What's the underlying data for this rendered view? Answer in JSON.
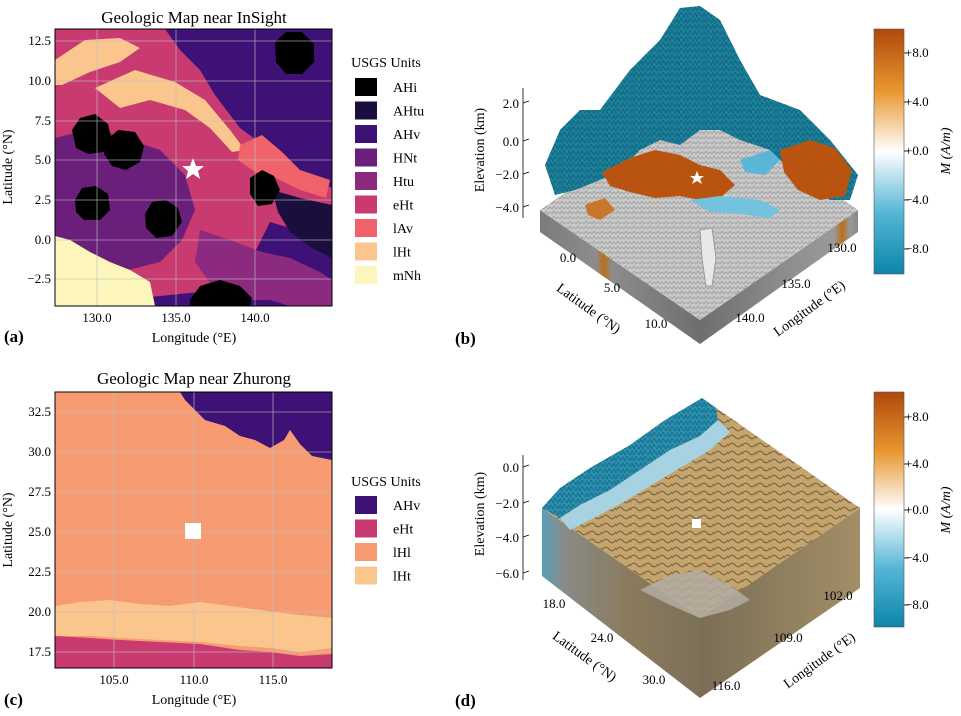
{
  "colors": {
    "AHi": "#000000",
    "AHtu": "#1a0f3c",
    "AHv": "#3d1175",
    "HNt": "#6a1f7a",
    "Htu": "#8c2a80",
    "eHt": "#c83a70",
    "lAv": "#f0636b",
    "lHt": "#fbc58e",
    "mNh": "#fdf6bc",
    "lHl": "#f79c72",
    "mag_pos": "#bf5410",
    "mag_neg": "#0f8fb5",
    "mag_mid": "#ffffff"
  },
  "panels": {
    "a": {
      "label": "(a)",
      "title": "Geologic Map near InSight",
      "xlabel": "Longitude (°E)",
      "ylabel": "Latitude (°N)",
      "xticks": [
        "130.0",
        "135.0",
        "140.0"
      ],
      "yticks": [
        "12.5",
        "10.0",
        "7.5",
        "5.0",
        "2.5",
        "0.0",
        "−2.5"
      ],
      "legend_title": "USGS Units",
      "legend": [
        "AHi",
        "AHtu",
        "AHv",
        "HNt",
        "Htu",
        "eHt",
        "lAv",
        "lHt",
        "mNh"
      ]
    },
    "b": {
      "label": "(b)",
      "zlabel": "Elevation (km)",
      "zticks": [
        "2.0",
        "0.0",
        "−2.0",
        "−4.0"
      ],
      "lat_label": "Latitude (°N)",
      "lat_ticks": [
        "0.0",
        "5.0",
        "10.0"
      ],
      "lon_label": "Longitude (°E)",
      "lon_ticks": [
        "130.0",
        "135.0",
        "140.0"
      ],
      "cbar_label": "M (A/m)",
      "cbar_ticks": [
        "+8.0",
        "+4.0",
        "+0.0",
        "−4.0",
        "−8.0"
      ]
    },
    "c": {
      "label": "(c)",
      "title": "Geologic Map near Zhurong",
      "xlabel": "Longitude (°E)",
      "ylabel": "Latitude (°N)",
      "xticks": [
        "105.0",
        "110.0",
        "115.0"
      ],
      "yticks": [
        "32.5",
        "30.0",
        "27.5",
        "25.0",
        "22.5",
        "20.0",
        "17.5"
      ],
      "legend_title": "USGS Units",
      "legend": [
        "AHv",
        "eHt",
        "lHl",
        "lHt"
      ]
    },
    "d": {
      "label": "(d)",
      "zlabel": "Elevation (km)",
      "zticks": [
        "0.0",
        "−2.0",
        "−4.0",
        "−6.0"
      ],
      "lat_label": "Latitude (°N)",
      "lat_ticks": [
        "18.0",
        "24.0",
        "30.0"
      ],
      "lon_label": "Longitude (°E)",
      "lon_ticks": [
        "102.0",
        "109.0",
        "116.0"
      ],
      "cbar_label": "M (A/m)",
      "cbar_ticks": [
        "+8.0",
        "+4.0",
        "+0.0",
        "−4.0",
        "−8.0"
      ]
    }
  },
  "chart_data": [
    {
      "type": "heatmap",
      "title": "Geologic Map near InSight",
      "xlabel": "Longitude (°E)",
      "ylabel": "Latitude (°N)",
      "xlim": [
        126.7,
        144.3
      ],
      "ylim": [
        -4.0,
        13.5
      ],
      "legend_title": "USGS Units",
      "categories": [
        "AHi",
        "AHtu",
        "AHv",
        "HNt",
        "Htu",
        "eHt",
        "lAv",
        "lHt",
        "mNh"
      ],
      "marker": {
        "shape": "star",
        "lon": 135.6,
        "lat": 4.5
      }
    },
    {
      "type": "heatmap",
      "subtype": "3d-surface",
      "zlabel": "Elevation (km)",
      "zlim": [
        -4.0,
        2.0
      ],
      "xlabel": "Longitude (°E)",
      "ylabel": "Latitude (°N)",
      "colorbar": {
        "label": "M (A/m)",
        "range": [
          -9.5,
          9.5
        ],
        "ticks": [
          8.0,
          4.0,
          0.0,
          -4.0,
          -8.0
        ]
      }
    },
    {
      "type": "heatmap",
      "title": "Geologic Map near Zhurong",
      "xlabel": "Longitude (°E)",
      "ylabel": "Latitude (°N)",
      "xlim": [
        101.0,
        118.5
      ],
      "ylim": [
        16.5,
        34.0
      ],
      "legend_title": "USGS Units",
      "categories": [
        "AHv",
        "eHt",
        "lHl",
        "lHt"
      ],
      "marker": {
        "shape": "square",
        "lon": 110.0,
        "lat": 25.0
      }
    },
    {
      "type": "heatmap",
      "subtype": "3d-surface",
      "zlabel": "Elevation (km)",
      "zlim": [
        -6.0,
        0.0
      ],
      "xlabel": "Longitude (°E)",
      "ylabel": "Latitude (°N)",
      "colorbar": {
        "label": "M (A/m)",
        "range": [
          -9.5,
          9.5
        ],
        "ticks": [
          8.0,
          4.0,
          0.0,
          -4.0,
          -8.0
        ]
      }
    }
  ]
}
